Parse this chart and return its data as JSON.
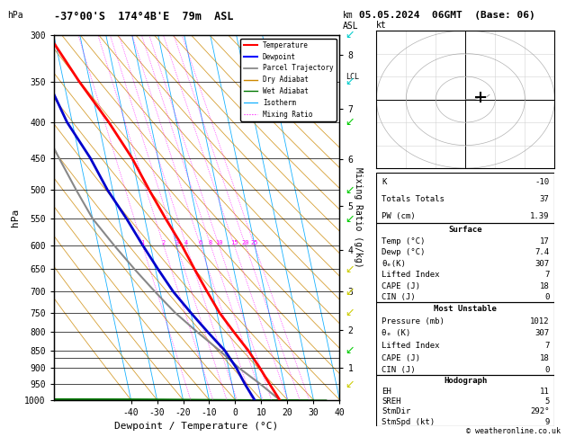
{
  "title_left": "-37°00'S  174°4B'E  79m  ASL",
  "title_right": "05.05.2024  06GMT  (Base: 06)",
  "xlabel": "Dewpoint / Temperature (°C)",
  "pressure_levels": [
    300,
    350,
    400,
    450,
    500,
    550,
    600,
    650,
    700,
    750,
    800,
    850,
    900,
    950,
    1000
  ],
  "temp_xlim": [
    -40,
    40
  ],
  "temp_color": "#ff0000",
  "dewp_color": "#0000cc",
  "parcel_color": "#888888",
  "dry_adiabat_color": "#cc8800",
  "wet_adiabat_color": "#007700",
  "isotherm_color": "#00aaff",
  "mixing_ratio_color": "#ff00ff",
  "temp_profile_p": [
    1000,
    950,
    900,
    850,
    800,
    750,
    700,
    650,
    600,
    550,
    500,
    450,
    400,
    350,
    300
  ],
  "temp_profile_t": [
    17,
    14.5,
    12,
    9,
    5,
    1,
    -2,
    -5,
    -8,
    -12,
    -16,
    -20,
    -26,
    -34,
    -42
  ],
  "dewp_profile_p": [
    1000,
    950,
    900,
    850,
    800,
    750,
    700,
    650,
    600,
    550,
    500,
    450,
    400,
    350,
    300
  ],
  "dewp_profile_t": [
    7.4,
    5,
    3,
    0,
    -5,
    -10,
    -15,
    -19,
    -23,
    -27,
    -32,
    -36,
    -42,
    -46,
    -52
  ],
  "parcel_profile_p": [
    1000,
    950,
    900,
    850,
    800,
    750,
    700,
    650,
    600,
    550,
    500,
    450,
    400,
    350,
    300
  ],
  "parcel_profile_t": [
    17,
    11,
    4,
    -2,
    -9,
    -16,
    -22,
    -28,
    -34,
    -40,
    -44,
    -48,
    -52,
    -56,
    -60
  ],
  "mixing_ratio_values": [
    1,
    2,
    3,
    4,
    6,
    8,
    10,
    15,
    20,
    25
  ],
  "km_ticks": [
    1,
    2,
    3,
    4,
    5,
    6,
    7,
    8
  ],
  "km_pressures": [
    899,
    795,
    698,
    609,
    527,
    452,
    383,
    320
  ],
  "lcl_pressure": 870,
  "stats_k": "-10",
  "stats_tt": "37",
  "stats_pw": "1.39",
  "surf_temp": "17",
  "surf_dewp": "7.4",
  "surf_theta_e": "307",
  "surf_li": "7",
  "surf_cape": "18",
  "surf_cin": "0",
  "mu_press": "1012",
  "mu_theta_e": "307",
  "mu_li": "7",
  "mu_cape": "18",
  "mu_cin": "0",
  "hodo_eh": "11",
  "hodo_sreh": "5",
  "hodo_stmdir": "292°",
  "hodo_stmspd": "9",
  "copyright": "© weatheronline.co.uk"
}
